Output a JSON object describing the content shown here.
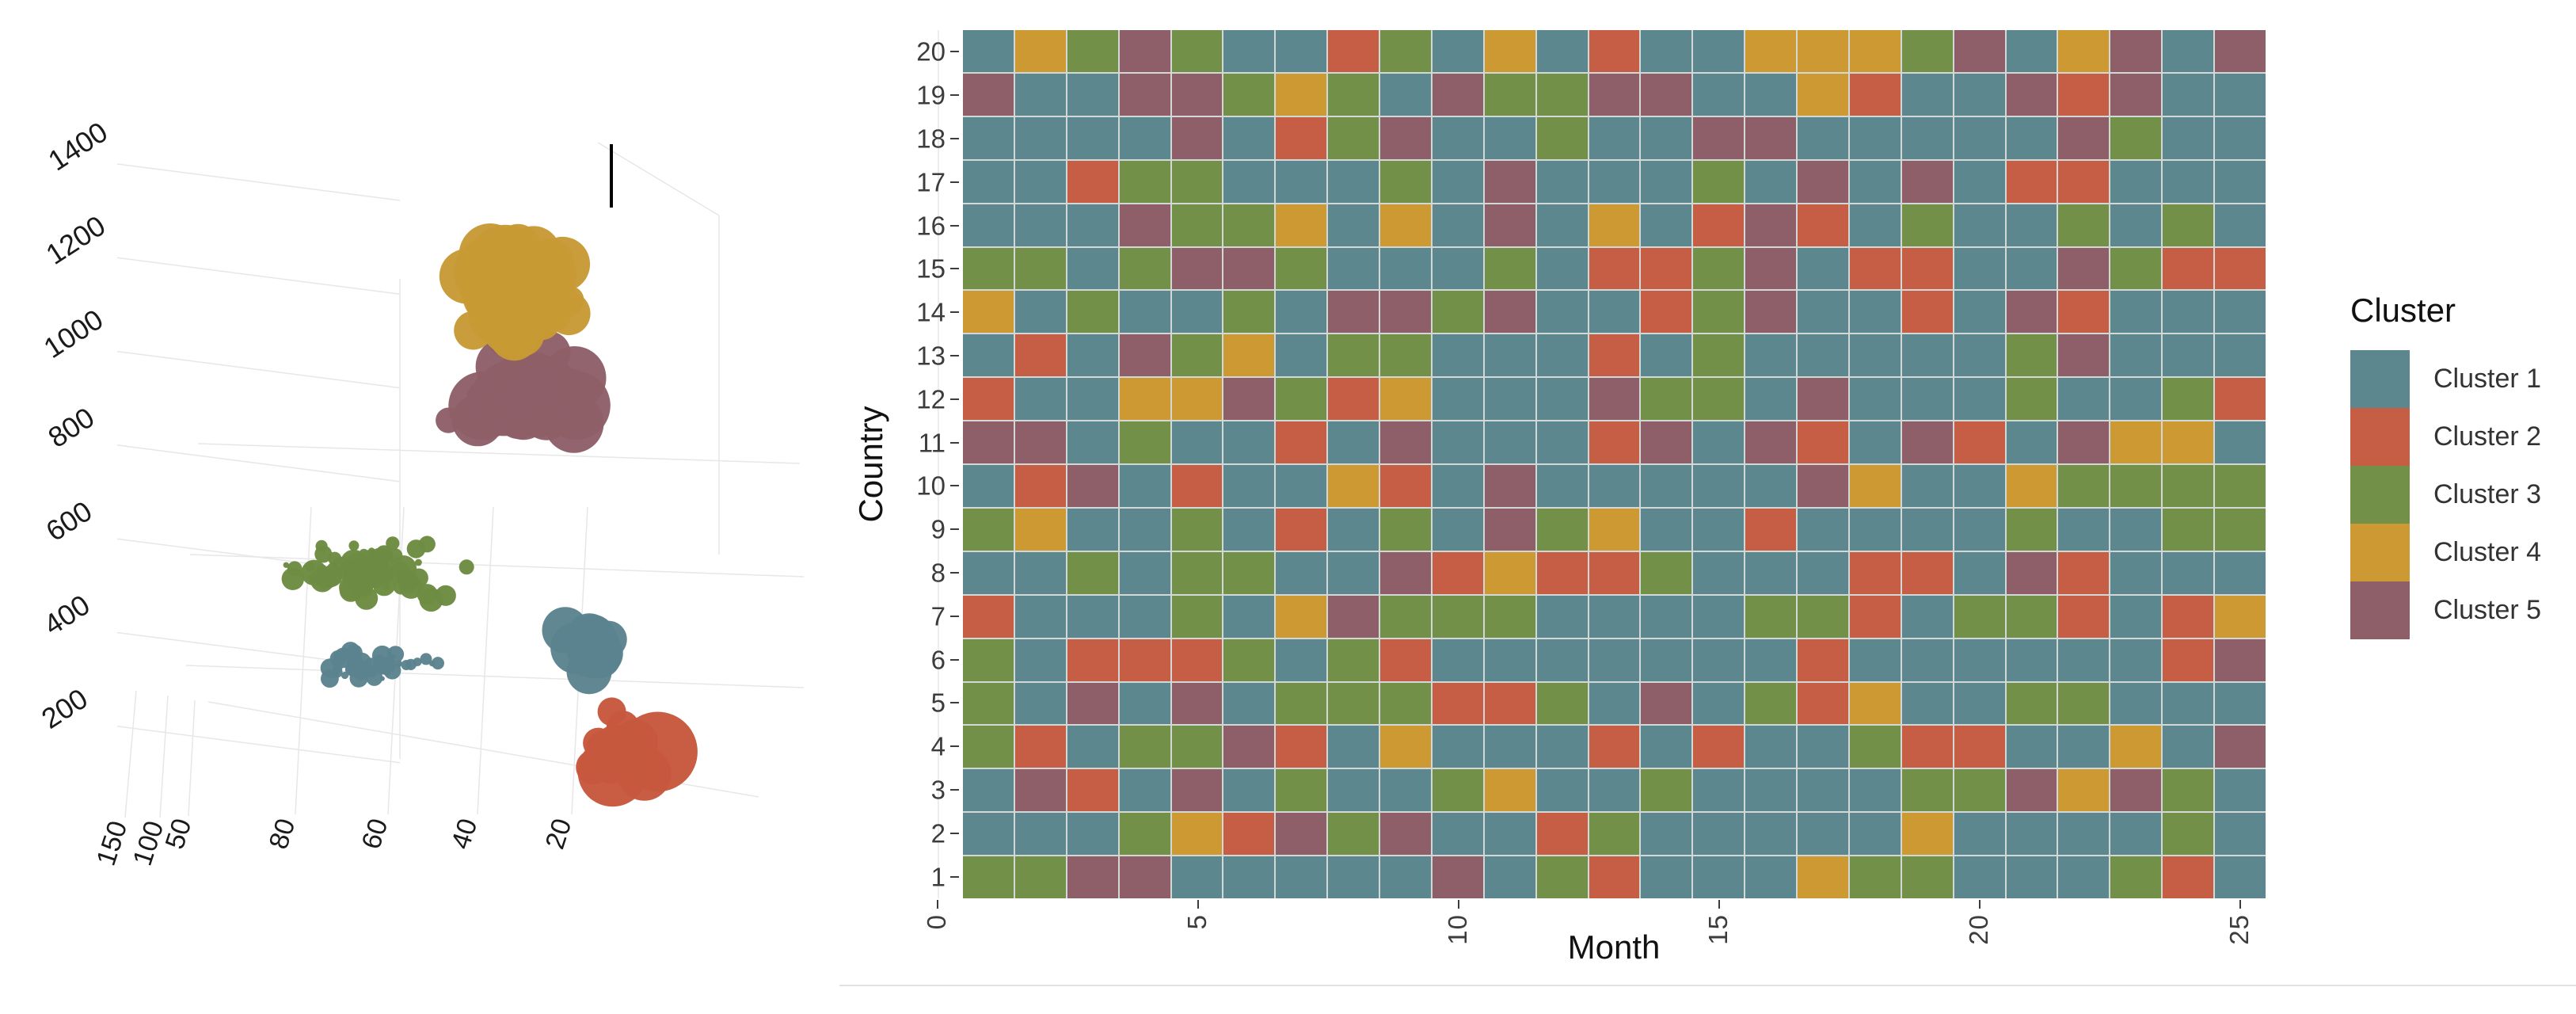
{
  "chart_data": [
    {
      "id": "bubble3d",
      "type": "scatter",
      "description": "3D bubble scatter of five clusters",
      "z_ticks": [
        "1400",
        "1200",
        "1000",
        "800",
        "600",
        "400",
        "200"
      ],
      "x_ticks": [
        {
          "label": "80",
          "x": 367
        },
        {
          "label": "60",
          "x": 484
        },
        {
          "label": "40",
          "x": 597
        },
        {
          "label": "20",
          "x": 716
        }
      ],
      "depth_ticks": [
        {
          "label": "150",
          "x": 152
        },
        {
          "label": "100",
          "x": 198
        },
        {
          "label": "50",
          "x": 236
        }
      ],
      "marker_line": {
        "x": 772,
        "y1": 182,
        "y2": 262
      },
      "clusters": [
        {
          "name": "cluster-5-purple",
          "color": "#8E5F68",
          "n": 32,
          "cx": 658,
          "cy": 487,
          "sx": 112,
          "sy": 72,
          "rmin": 16,
          "rmax": 44,
          "seed": 7
        },
        {
          "name": "cluster-4-gold",
          "color": "#C79A35",
          "n": 50,
          "cx": 660,
          "cy": 368,
          "sx": 95,
          "sy": 100,
          "rmin": 16,
          "rmax": 48,
          "seed": 11
        },
        {
          "name": "cluster-3-green",
          "color": "#6D8B42",
          "n": 70,
          "cx": 468,
          "cy": 722,
          "sx": 130,
          "sy": 50,
          "rmin": 3,
          "rmax": 17,
          "seed": 3
        },
        {
          "name": "cluster-1-teal-band",
          "color": "#5B838E",
          "n": 46,
          "cx": 475,
          "cy": 843,
          "sx": 128,
          "sy": 30,
          "rmin": 3,
          "rmax": 13,
          "seed": 5
        },
        {
          "name": "cluster-1-teal-blob",
          "color": "#5B838E",
          "n": 16,
          "cx": 747,
          "cy": 818,
          "sx": 45,
          "sy": 40,
          "rmin": 12,
          "rmax": 34,
          "seed": 9
        },
        {
          "name": "cluster-2-red",
          "color": "#C6583E",
          "n": 13,
          "cx": 792,
          "cy": 950,
          "sx": 58,
          "sy": 55,
          "rmin": 16,
          "rmax": 55,
          "seed": 13
        }
      ]
    },
    {
      "id": "country-month-heatmap",
      "type": "heatmap",
      "xlabel": "Month",
      "ylabel": "Country",
      "x_tick_months": [
        0,
        5,
        10,
        15,
        20,
        25
      ],
      "x_tick_labels": [
        "0",
        "5",
        "10",
        "15",
        "20",
        "25"
      ],
      "y_tick_labels": [
        "20",
        "19",
        "18",
        "17",
        "16",
        "15",
        "14",
        "13",
        "12",
        "11",
        "10",
        "9",
        "8",
        "7",
        "6",
        "5",
        "4",
        "3",
        "2",
        "1"
      ],
      "legend": {
        "title": "Cluster",
        "entries": [
          {
            "label": "Cluster 1",
            "color": "#5D878F"
          },
          {
            "label": "Cluster 2",
            "color": "#C65E46"
          },
          {
            "label": "Cluster 3",
            "color": "#729047"
          },
          {
            "label": "Cluster 4",
            "color": "#CC9933"
          },
          {
            "label": "Cluster 5",
            "color": "#8E5F68"
          }
        ]
      },
      "rows": [
        {
          "country": "20",
          "cells": "1435311231412114443514515"
        },
        {
          "country": "19",
          "cells": "5115534315335511421152511"
        },
        {
          "country": "18",
          "cells": "1111512351131155111115311"
        },
        {
          "country": "17",
          "cells": "1123311131511131515122111"
        },
        {
          "country": "16",
          "cells": "1115334141514125213113131"
        },
        {
          "country": "15",
          "cells": "3313553111312235122115322"
        },
        {
          "country": "14",
          "cells": "4131131553511235112152111"
        },
        {
          "country": "13",
          "cells": "1215341331112131111135111"
        },
        {
          "country": "12",
          "cells": "2114453241115331511131132"
        },
        {
          "country": "11",
          "cells": "5513112151112515215215441"
        },
        {
          "country": "10",
          "cells": "1251211421511111541143333"
        },
        {
          "country": "9",
          "cells": "3411312131534112111131133"
        },
        {
          "country": "8",
          "cells": "1131331152422311122152111"
        },
        {
          "country": "7",
          "cells": "2111314533311113321332124"
        },
        {
          "country": "6",
          "cells": "3122231321111111211111125"
        },
        {
          "country": "5",
          "cells": "3151513332231513241133111"
        },
        {
          "country": "4",
          "cells": "3213352141112121132211415"
        },
        {
          "country": "3",
          "cells": "1521513113411311113354531"
        },
        {
          "country": "2",
          "cells": "1113425351123111114111131"
        },
        {
          "country": "1",
          "cells": "3355111115132111433111321"
        }
      ]
    }
  ]
}
